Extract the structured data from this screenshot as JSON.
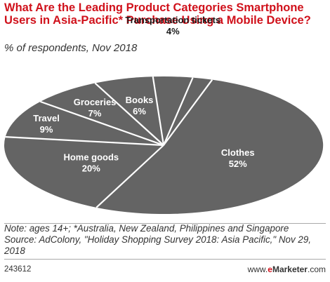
{
  "header": {
    "title": "What Are the Leading Product Categories Smartphone Users in Asia-Pacific* Purchase Using a Mobile Device?",
    "subtitle": "% of respondents, Nov 2018"
  },
  "chart_data": {
    "type": "pie",
    "title": "What Are the Leading Product Categories Smartphone Users in Asia-Pacific* Purchase Using a Mobile Device?",
    "subtitle": "% of respondents, Nov 2018",
    "unit": "%",
    "slices": [
      {
        "label": "Clothes",
        "value": 52,
        "display": "52%"
      },
      {
        "label": "Home goods",
        "value": 20,
        "display": "20%"
      },
      {
        "label": "Travel",
        "value": 9,
        "display": "9%"
      },
      {
        "label": "Groceries",
        "value": 7,
        "display": "7%"
      },
      {
        "label": "Books",
        "value": 6,
        "display": "6%"
      },
      {
        "label": "Transportation tickets",
        "value": 4,
        "display": "4%"
      },
      {
        "label": "Event tickets",
        "value": 2,
        "display": "2%"
      }
    ],
    "colors": {
      "fill": "#646464",
      "separator": "#ffffff",
      "label": "#ffffff",
      "outside_label": "#1a1a1a"
    }
  },
  "notes": {
    "line1": "Note: ages 14+; *Australia, New Zealand, Philippines and Singapore",
    "line2": "Source: AdColony, \"Holiday Shopping Survey 2018: Asia Pacific,\" Nov 29, 2018"
  },
  "footer": {
    "chart_id": "243612",
    "brand_prefix": "www.",
    "brand_accent": "e",
    "brand_name": "Marketer",
    "brand_suffix": ".com"
  }
}
